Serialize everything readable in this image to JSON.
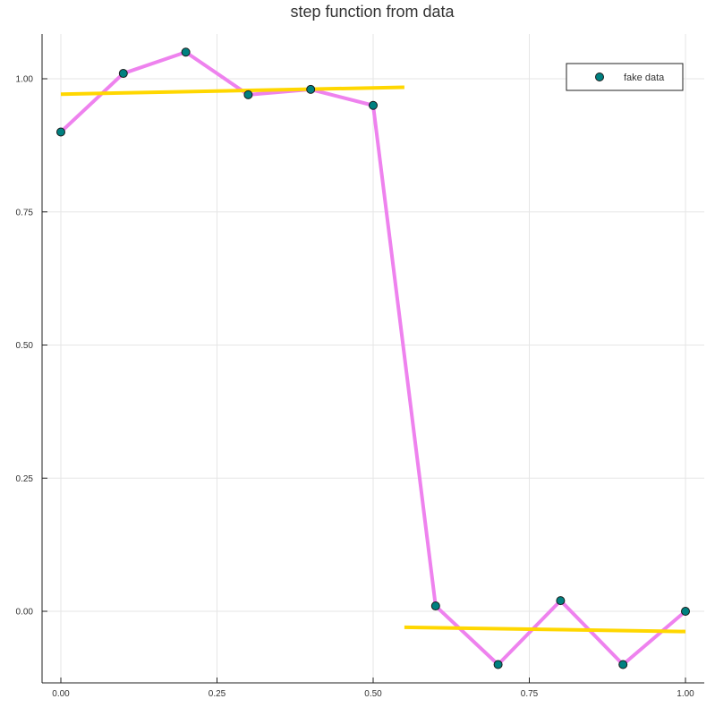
{
  "chart_data": {
    "type": "line",
    "title": "step function from data",
    "xlabel": "",
    "ylabel": "",
    "xlim": [
      0,
      1
    ],
    "ylim": [
      -0.1,
      1.05
    ],
    "grid": true,
    "legend_position": "top-right",
    "x_ticks": [
      "0.00",
      "0.25",
      "0.50",
      "0.75",
      "1.00"
    ],
    "y_ticks": [
      "0.00",
      "0.25",
      "0.50",
      "0.75",
      "1.00"
    ],
    "series": [
      {
        "name": "",
        "kind": "line",
        "color": "#ee82ee",
        "x": [
          0.0,
          0.1,
          0.2,
          0.3,
          0.4,
          0.5,
          0.6,
          0.7,
          0.8,
          0.9,
          1.0
        ],
        "y": [
          0.9,
          1.01,
          1.05,
          0.97,
          0.98,
          0.95,
          0.01,
          -0.1,
          0.02,
          -0.1,
          0.0
        ]
      },
      {
        "name": "",
        "kind": "line",
        "color": "#ffd700",
        "x": [
          0.0,
          0.55
        ],
        "y": [
          0.971,
          0.984
        ]
      },
      {
        "name": "",
        "kind": "line",
        "color": "#ffd700",
        "x": [
          0.55,
          1.0
        ],
        "y": [
          -0.03,
          -0.038
        ]
      },
      {
        "name": "fake data",
        "kind": "scatter",
        "color": "#008080",
        "x": [
          0.0,
          0.1,
          0.2,
          0.3,
          0.4,
          0.5,
          0.6,
          0.7,
          0.8,
          0.9,
          1.0
        ],
        "y": [
          0.9,
          1.01,
          1.05,
          0.97,
          0.98,
          0.95,
          0.01,
          -0.1,
          0.02,
          -0.1,
          0.0
        ]
      }
    ]
  }
}
